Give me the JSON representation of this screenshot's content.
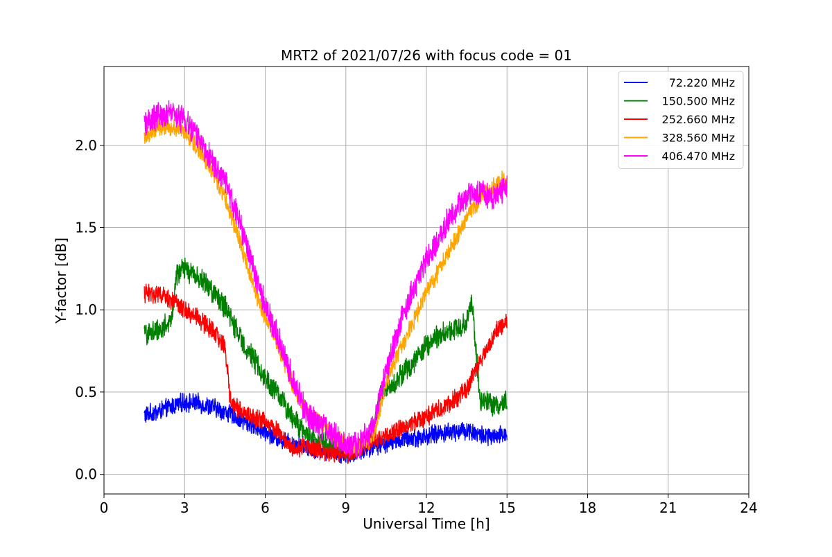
{
  "chart_data": {
    "type": "line",
    "title": "MRT2 of 2021/07/26 with focus code = 01",
    "xlabel": "Universal Time [h]",
    "ylabel": "Y-factor [dB]",
    "xlim": [
      0,
      24
    ],
    "ylim": [
      -0.12,
      2.48
    ],
    "xticks": [
      0,
      3,
      6,
      9,
      12,
      15,
      18,
      21,
      24
    ],
    "yticks": [
      0.0,
      0.5,
      1.0,
      1.5,
      2.0
    ],
    "xtick_labels": [
      "0",
      "3",
      "6",
      "9",
      "12",
      "15",
      "18",
      "21",
      "24"
    ],
    "ytick_labels": [
      "0.0",
      "0.5",
      "1.0",
      "1.5",
      "2.0"
    ],
    "grid": true,
    "legend_position": "top-right",
    "series": [
      {
        "name": "72.220 MHz",
        "color": "#0000ff",
        "noise": 0.05,
        "x": [
          1.5,
          2.0,
          2.5,
          3.0,
          3.5,
          4.0,
          4.5,
          5.0,
          5.5,
          6.0,
          6.5,
          7.0,
          7.5,
          8.0,
          8.5,
          9.0,
          9.5,
          10.0,
          10.5,
          11.0,
          11.5,
          12.0,
          12.5,
          13.0,
          13.5,
          14.0,
          14.5,
          15.0
        ],
        "y": [
          0.36,
          0.38,
          0.41,
          0.44,
          0.43,
          0.41,
          0.38,
          0.34,
          0.3,
          0.26,
          0.22,
          0.19,
          0.17,
          0.15,
          0.13,
          0.12,
          0.14,
          0.17,
          0.19,
          0.21,
          0.22,
          0.23,
          0.25,
          0.26,
          0.27,
          0.24,
          0.22,
          0.25
        ]
      },
      {
        "name": "150.500 MHz",
        "color": "#008000",
        "noise": 0.06,
        "x": [
          1.5,
          2.0,
          2.5,
          2.7,
          3.0,
          3.5,
          4.0,
          4.5,
          5.0,
          5.5,
          6.0,
          6.5,
          7.0,
          7.5,
          8.0,
          8.5,
          9.0,
          9.5,
          10.0,
          10.3,
          10.8,
          11.5,
          12.0,
          12.5,
          13.0,
          13.5,
          13.7,
          14.0,
          14.5,
          15.0
        ],
        "y": [
          0.85,
          0.88,
          0.92,
          1.22,
          1.25,
          1.2,
          1.12,
          1.02,
          0.85,
          0.72,
          0.58,
          0.48,
          0.35,
          0.25,
          0.2,
          0.18,
          0.15,
          0.16,
          0.25,
          0.5,
          0.56,
          0.68,
          0.78,
          0.85,
          0.88,
          0.92,
          1.05,
          0.45,
          0.42,
          0.44
        ]
      },
      {
        "name": "252.660 MHz",
        "color": "#ff0000",
        "noise": 0.05,
        "x": [
          1.5,
          2.0,
          2.5,
          3.0,
          3.5,
          4.0,
          4.5,
          4.7,
          5.0,
          5.5,
          6.0,
          6.5,
          7.0,
          7.5,
          8.0,
          8.5,
          9.0,
          9.5,
          10.0,
          10.5,
          11.0,
          11.5,
          12.0,
          12.5,
          13.0,
          13.5,
          14.0,
          14.5,
          15.0
        ],
        "y": [
          1.1,
          1.1,
          1.06,
          1.0,
          0.95,
          0.88,
          0.78,
          0.45,
          0.4,
          0.35,
          0.32,
          0.26,
          0.16,
          0.17,
          0.15,
          0.13,
          0.12,
          0.16,
          0.2,
          0.24,
          0.27,
          0.31,
          0.35,
          0.4,
          0.45,
          0.52,
          0.68,
          0.85,
          0.92
        ]
      },
      {
        "name": "328.560 MHz",
        "color": "#ffa500",
        "noise": 0.05,
        "x": [
          1.5,
          2.0,
          2.5,
          3.0,
          3.5,
          4.0,
          4.5,
          5.0,
          5.5,
          6.0,
          6.5,
          7.0,
          7.5,
          8.0,
          8.5,
          9.0,
          9.5,
          10.0,
          10.5,
          11.0,
          11.5,
          12.0,
          12.5,
          13.0,
          13.5,
          14.0,
          14.5,
          15.0
        ],
        "y": [
          2.05,
          2.12,
          2.12,
          2.08,
          1.98,
          1.86,
          1.68,
          1.45,
          1.18,
          0.95,
          0.78,
          0.55,
          0.4,
          0.32,
          0.25,
          0.18,
          0.16,
          0.22,
          0.55,
          0.75,
          0.92,
          1.1,
          1.25,
          1.4,
          1.55,
          1.68,
          1.75,
          1.8
        ]
      },
      {
        "name": "406.470 MHz",
        "color": "#ff00ff",
        "noise": 0.07,
        "x": [
          1.5,
          2.0,
          2.5,
          3.0,
          3.5,
          4.0,
          4.5,
          5.0,
          5.5,
          6.0,
          6.5,
          7.0,
          7.5,
          8.0,
          8.5,
          9.0,
          9.5,
          10.0,
          10.5,
          11.0,
          11.5,
          12.0,
          12.5,
          13.0,
          13.5,
          14.0,
          14.5,
          15.0
        ],
        "y": [
          2.12,
          2.18,
          2.2,
          2.15,
          2.05,
          1.92,
          1.78,
          1.55,
          1.28,
          1.02,
          0.82,
          0.58,
          0.38,
          0.3,
          0.25,
          0.16,
          0.18,
          0.28,
          0.62,
          0.9,
          1.12,
          1.3,
          1.45,
          1.6,
          1.7,
          1.72,
          1.68,
          1.75
        ]
      }
    ]
  }
}
